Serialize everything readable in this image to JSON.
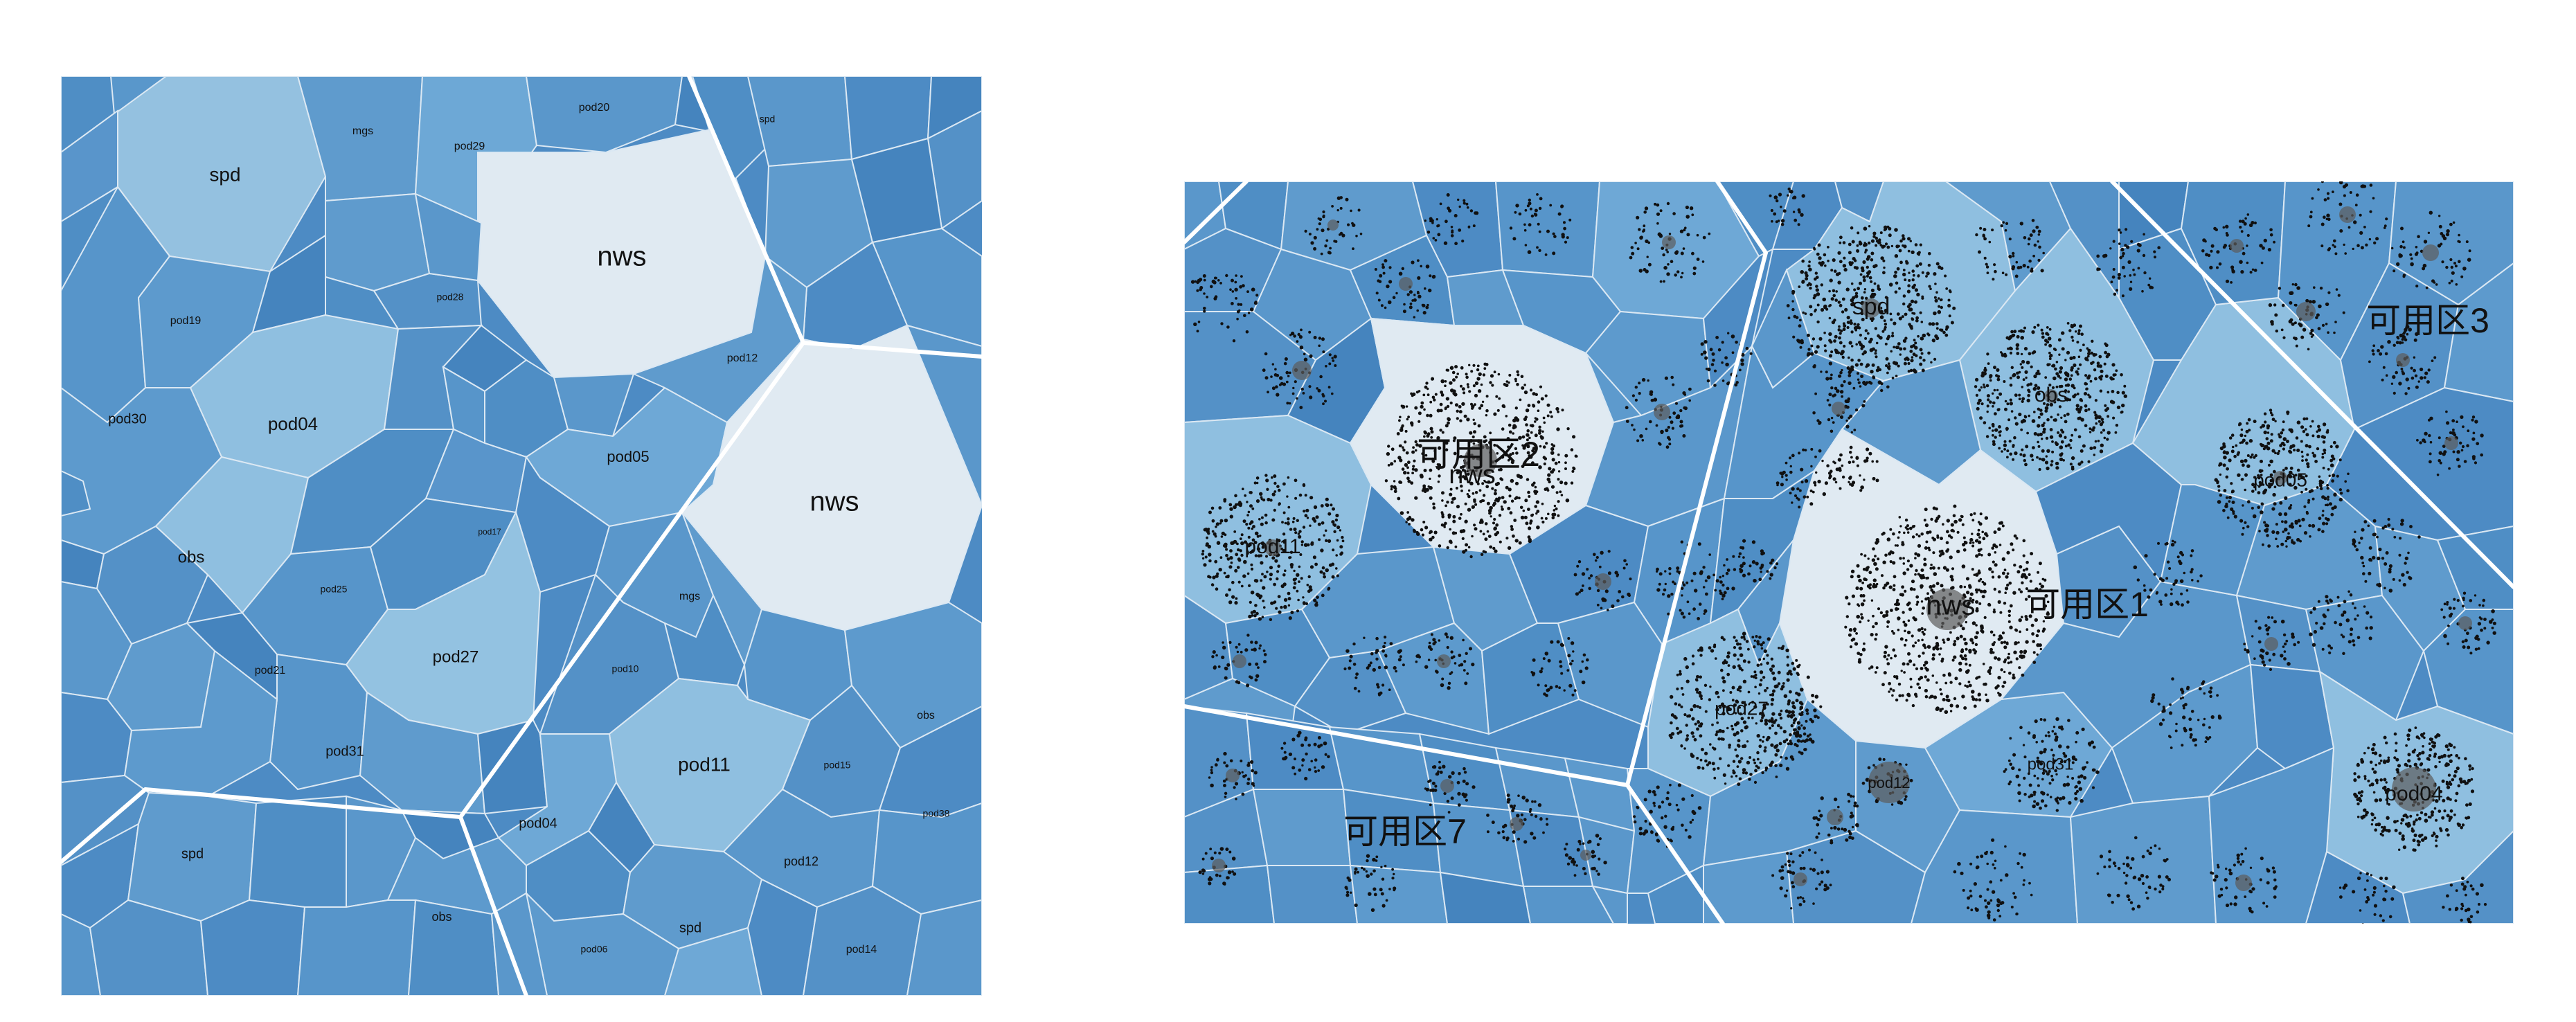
{
  "palette": {
    "node_fill": "#e1ebf3",
    "pod_fill": "#6ea8d3",
    "light_fill": "#8fbfe0",
    "base_fill": "#4d8bc4",
    "dark_fill": "#3f7fba",
    "border": "#ffffff"
  },
  "left_diagram": {
    "labels": {
      "spd_top": "spd",
      "mgs_top": "mgs",
      "pod29_top": "pod29",
      "pod20_top": "pod20",
      "nws_top": "nws",
      "spd_right_top": "spd",
      "pod04_left": "pod04",
      "obs_left": "obs",
      "pod30_left": "pod30",
      "pod19_left": "pod19",
      "pod12_mid": "pod12",
      "pod05_mid": "pod05",
      "nws_right": "nws",
      "pod27_left": "pod27",
      "pod21_left": "pod21",
      "pod31_left": "pod31",
      "pod11_bottom": "pod11",
      "pod04_bottom": "pod04",
      "spd_bottom": "spd",
      "pod12_bottom": "pod12",
      "pod14_bottom": "pod14",
      "spd_lower": "spd",
      "obs_lower": "obs",
      "obs_right": "obs",
      "mgs_mid": "mgs",
      "pod25_left": "pod25",
      "pod10_mid": "pod10",
      "pod15_bottom": "pod15",
      "pod06_bottom": "pod06",
      "pod38_right": "pod38",
      "pod17_mid": "pod17",
      "pod28_mid": "pod28"
    }
  },
  "right_diagram": {
    "zones": {
      "zone2": "可用区2",
      "zone3": "可用区3",
      "zone1": "可用区1",
      "zone7": "可用区7"
    },
    "labels": {
      "nws_upper": "nws",
      "nws_center": "nws",
      "spd": "spd",
      "obs": "obs",
      "pod11": "pod11",
      "pod05": "pod05",
      "pod27": "pod27",
      "pod04": "pod04",
      "pod12": "pod12",
      "pod31": "pod31"
    }
  }
}
